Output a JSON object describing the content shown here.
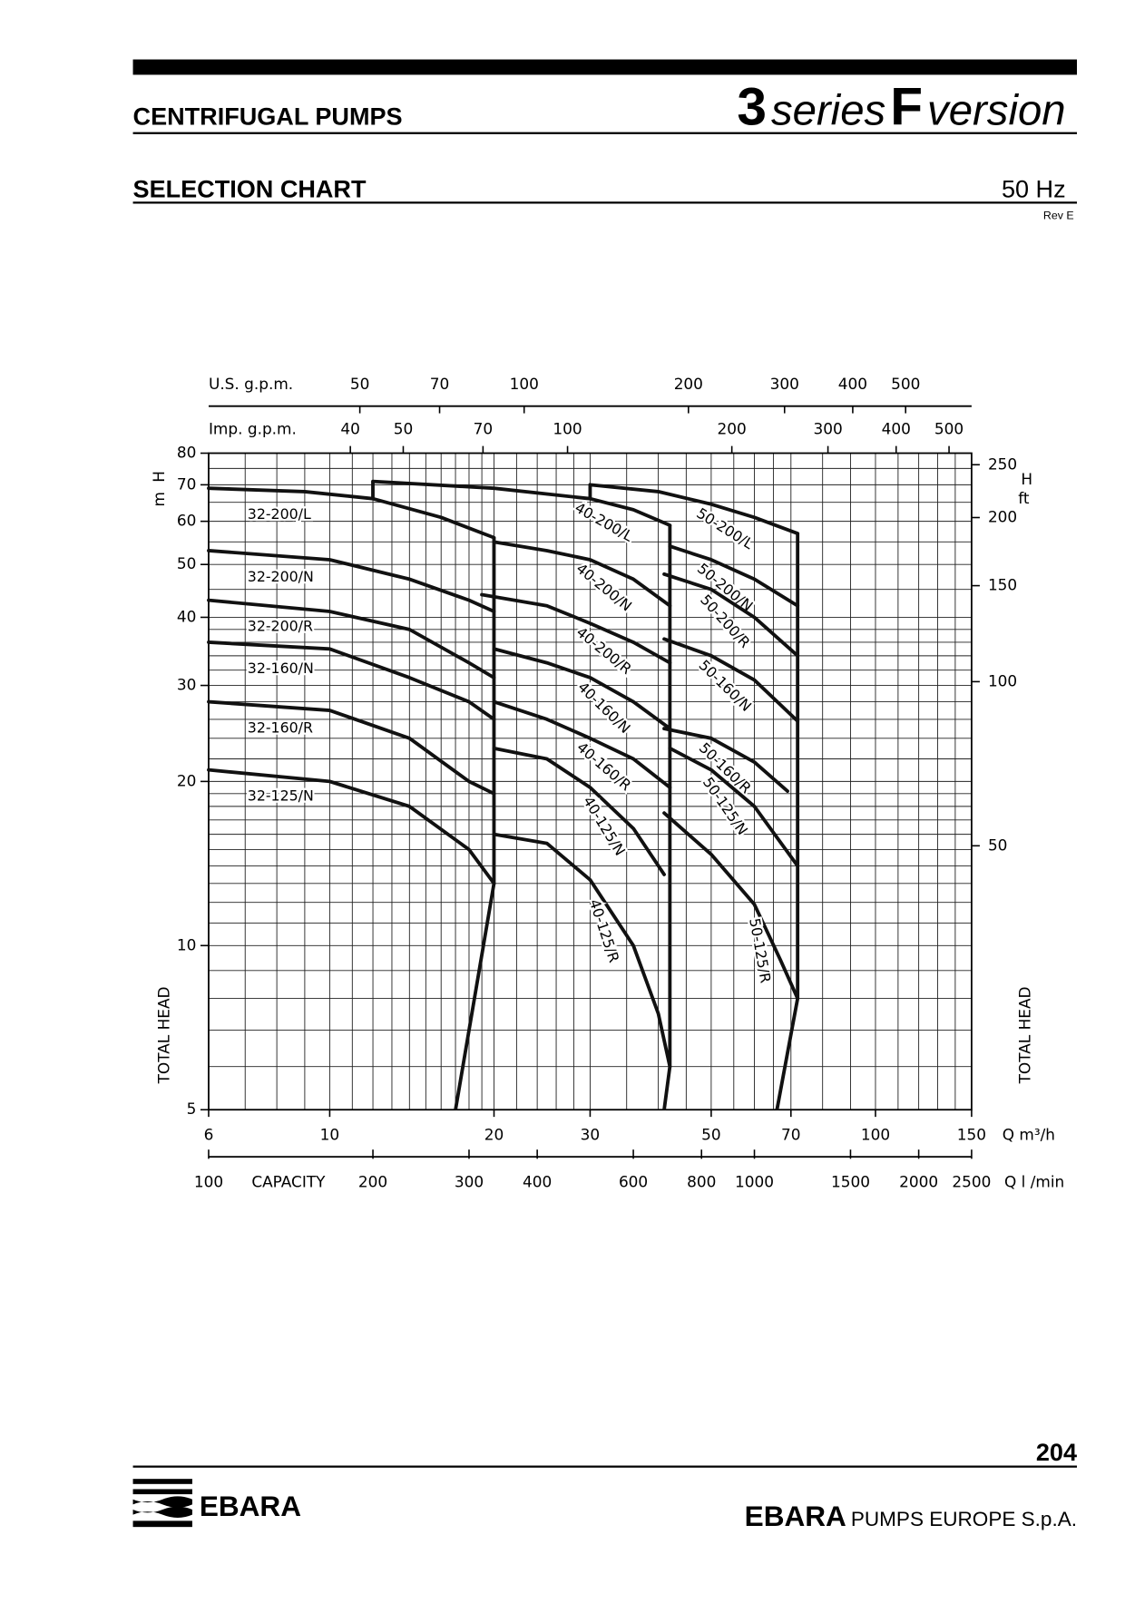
{
  "header": {
    "title": "CENTRIFUGAL PUMPS",
    "series": [
      "3",
      "series",
      "F",
      "version"
    ],
    "subtitle": "SELECTION CHART",
    "frequency": "50 Hz",
    "revision": "Rev E"
  },
  "chart_data": {
    "type": "line",
    "log_x": true,
    "log_y": true,
    "grid": true,
    "xlabel": "Q m³/h",
    "ylabel": "H",
    "yunit": "m",
    "ytitle": "TOTAL HEAD",
    "xlim": [
      6,
      150
    ],
    "ylim": [
      5,
      80
    ],
    "xticks": [
      6,
      10,
      20,
      30,
      50,
      70,
      100,
      150
    ],
    "yticks": [
      5,
      10,
      20,
      30,
      40,
      50,
      60,
      70,
      80
    ],
    "xgrid": [
      6,
      7,
      8,
      9,
      10,
      11,
      12,
      13,
      14,
      15,
      16,
      17,
      18,
      19,
      20,
      22,
      24,
      26,
      28,
      30,
      35,
      40,
      45,
      50,
      55,
      60,
      65,
      70,
      80,
      90,
      100,
      110,
      120,
      130,
      140,
      150
    ],
    "ygrid": [
      5,
      6,
      7,
      8,
      9,
      10,
      11,
      12,
      13,
      14,
      15,
      16,
      17,
      18,
      19,
      20,
      22,
      24,
      26,
      28,
      30,
      32,
      34,
      36,
      38,
      40,
      45,
      50,
      55,
      60,
      65,
      70,
      75,
      80
    ],
    "series": [
      {
        "name": "32-200/L",
        "color": "#111111",
        "x": [
          6,
          9,
          12,
          16,
          20
        ],
        "values": [
          69,
          68,
          66,
          61,
          56
        ]
      },
      {
        "name": "32-200/N",
        "color": "#111111",
        "x": [
          6,
          10,
          14,
          18,
          20
        ],
        "values": [
          53,
          51,
          47,
          43,
          41
        ]
      },
      {
        "name": "32-200/R",
        "color": "#111111",
        "x": [
          6,
          10,
          14,
          18,
          20
        ],
        "values": [
          43,
          41,
          38,
          33,
          31
        ]
      },
      {
        "name": "32-160/N",
        "color": "#111111",
        "x": [
          6,
          10,
          14,
          18,
          20
        ],
        "values": [
          36,
          35,
          31,
          28,
          26
        ]
      },
      {
        "name": "32-160/R",
        "color": "#111111",
        "x": [
          6,
          10,
          14,
          18,
          20
        ],
        "values": [
          28,
          27,
          24,
          20,
          19
        ]
      },
      {
        "name": "32-125/N",
        "color": "#111111",
        "x": [
          6,
          10,
          14,
          18,
          20
        ],
        "values": [
          21,
          20,
          18,
          15,
          13
        ]
      },
      {
        "name": "40-200/L",
        "color": "#111111",
        "x": [
          12,
          20,
          30,
          36,
          42
        ],
        "values": [
          71,
          69,
          66,
          63,
          59
        ]
      },
      {
        "name": "40-200/N",
        "color": "#111111",
        "x": [
          20,
          25,
          30,
          36,
          42
        ],
        "values": [
          55,
          53,
          51,
          47,
          42
        ]
      },
      {
        "name": "40-200/R",
        "color": "#111111",
        "x": [
          19,
          25,
          30,
          36,
          42
        ],
        "values": [
          44,
          42,
          39,
          36,
          33
        ]
      },
      {
        "name": "40-160/N",
        "color": "#111111",
        "x": [
          20,
          25,
          30,
          36,
          42
        ],
        "values": [
          35,
          33,
          31,
          28,
          25
        ]
      },
      {
        "name": "40-160/R",
        "color": "#111111",
        "x": [
          20,
          25,
          30,
          36,
          42
        ],
        "values": [
          28,
          26,
          24,
          22,
          19.5
        ]
      },
      {
        "name": "40-125/N",
        "color": "#111111",
        "x": [
          20,
          25,
          30,
          36,
          41
        ],
        "values": [
          23,
          22,
          19.5,
          16.4,
          13.5
        ]
      },
      {
        "name": "40-125/R",
        "color": "#111111",
        "x": [
          20,
          25,
          30,
          36,
          40,
          42
        ],
        "values": [
          16,
          15.4,
          13.2,
          10,
          7.5,
          6
        ]
      },
      {
        "name": "50-200/L",
        "color": "#111111",
        "x": [
          30,
          40,
          50,
          60,
          72
        ],
        "values": [
          70,
          68,
          64.5,
          61,
          57
        ]
      },
      {
        "name": "50-200/N",
        "color": "#111111",
        "x": [
          42,
          50,
          60,
          72
        ],
        "values": [
          54,
          51,
          47,
          42
        ]
      },
      {
        "name": "50-200/R",
        "color": "#111111",
        "x": [
          41,
          50,
          60,
          72
        ],
        "values": [
          48,
          45,
          40,
          34
        ]
      },
      {
        "name": "50-160/N",
        "color": "#111111",
        "x": [
          41,
          50,
          60,
          72
        ],
        "values": [
          36.5,
          34,
          30.7,
          25.8
        ]
      },
      {
        "name": "50-160/R",
        "color": "#111111",
        "x": [
          41,
          50,
          60,
          69
        ],
        "values": [
          25,
          24,
          21.7,
          19.2
        ]
      },
      {
        "name": "50-125/N",
        "color": "#111111",
        "x": [
          42,
          50,
          60,
          72
        ],
        "values": [
          23,
          21,
          18,
          14
        ]
      },
      {
        "name": "50-125/R",
        "color": "#111111",
        "x": [
          41,
          50,
          60,
          67,
          72
        ],
        "values": [
          17.5,
          14.7,
          11.9,
          9.4,
          8
        ]
      }
    ],
    "boundaries": [
      {
        "x": [
          17,
          20,
          20
        ],
        "values": [
          5,
          13,
          56
        ]
      },
      {
        "x": [
          41,
          42,
          42
        ],
        "values": [
          5,
          6,
          59
        ]
      },
      {
        "x": [
          66,
          72,
          72
        ],
        "values": [
          5,
          8,
          57
        ]
      },
      {
        "x": [
          12,
          12
        ],
        "values": [
          66,
          71
        ]
      },
      {
        "x": [
          30,
          30
        ],
        "values": [
          66,
          70
        ]
      }
    ],
    "top_axes": [
      {
        "label": "U.S. g.p.m.",
        "xlim": [
          26.42,
          660.4
        ],
        "xticks": [
          50,
          70,
          100,
          200,
          300,
          400,
          500
        ]
      },
      {
        "label": "Imp. g.p.m.",
        "xlim": [
          22,
          549.9
        ],
        "xticks": [
          40,
          50,
          70,
          100,
          200,
          300,
          400,
          500
        ]
      }
    ],
    "x2": {
      "label": "CAPACITY",
      "unit": "Q l /min",
      "xlim": [
        100,
        2500
      ],
      "xticks": [
        100,
        200,
        300,
        400,
        600,
        800,
        1000,
        1500,
        2000,
        2500
      ]
    },
    "y2": {
      "label": "H",
      "unit": "ft",
      "title": "TOTAL HEAD",
      "ylim": [
        16.4,
        262.5
      ],
      "yticks": [
        50,
        100,
        150,
        200,
        250
      ]
    }
  },
  "footer": {
    "page": "204",
    "logo": "EBARA",
    "company": [
      "EBARA",
      "PUMPS EUROPE S.p.A."
    ]
  }
}
